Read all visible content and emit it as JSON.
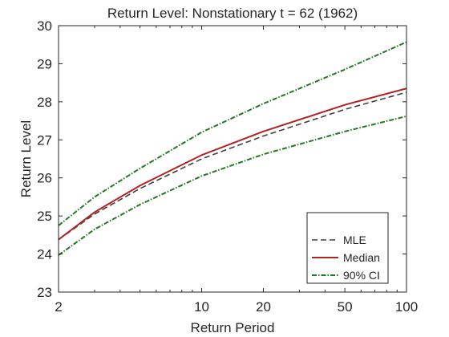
{
  "chart_data": {
    "type": "line",
    "title": "Return Level: Nonstationary t = 62 (1962)",
    "xlabel": "Return Period",
    "ylabel": "Return Level",
    "xscale": "log",
    "xlim": [
      2,
      100
    ],
    "ylim": [
      23,
      30
    ],
    "xticks": [
      2,
      10,
      20,
      50,
      100
    ],
    "xtick_labels": [
      "2",
      "10",
      "20",
      "50",
      "100"
    ],
    "yticks": [
      23,
      24,
      25,
      26,
      27,
      28,
      29,
      30
    ],
    "ytick_labels": [
      "23",
      "24",
      "25",
      "26",
      "27",
      "28",
      "29",
      "30"
    ],
    "grid": false,
    "legend_position": "bottom-right",
    "x": [
      2,
      3,
      5,
      10,
      20,
      50,
      100
    ],
    "series": [
      {
        "name": "MLE",
        "style": "dashed",
        "color": "#404040",
        "values": [
          24.38,
          25.05,
          25.72,
          26.5,
          27.1,
          27.8,
          28.25
        ]
      },
      {
        "name": "Median",
        "style": "solid",
        "color": "#b22222",
        "values": [
          24.38,
          25.1,
          25.8,
          26.6,
          27.22,
          27.92,
          28.35
        ]
      },
      {
        "name": "90% CI",
        "style": "dashdot",
        "color": "#1f7a1f",
        "values": [
          24.75,
          25.5,
          26.25,
          27.2,
          27.95,
          28.85,
          29.57
        ]
      },
      {
        "name": "90% CI lower",
        "style": "dashdot",
        "color": "#1f7a1f",
        "legend": false,
        "values": [
          23.97,
          24.65,
          25.3,
          26.05,
          26.62,
          27.22,
          27.62
        ]
      }
    ]
  }
}
